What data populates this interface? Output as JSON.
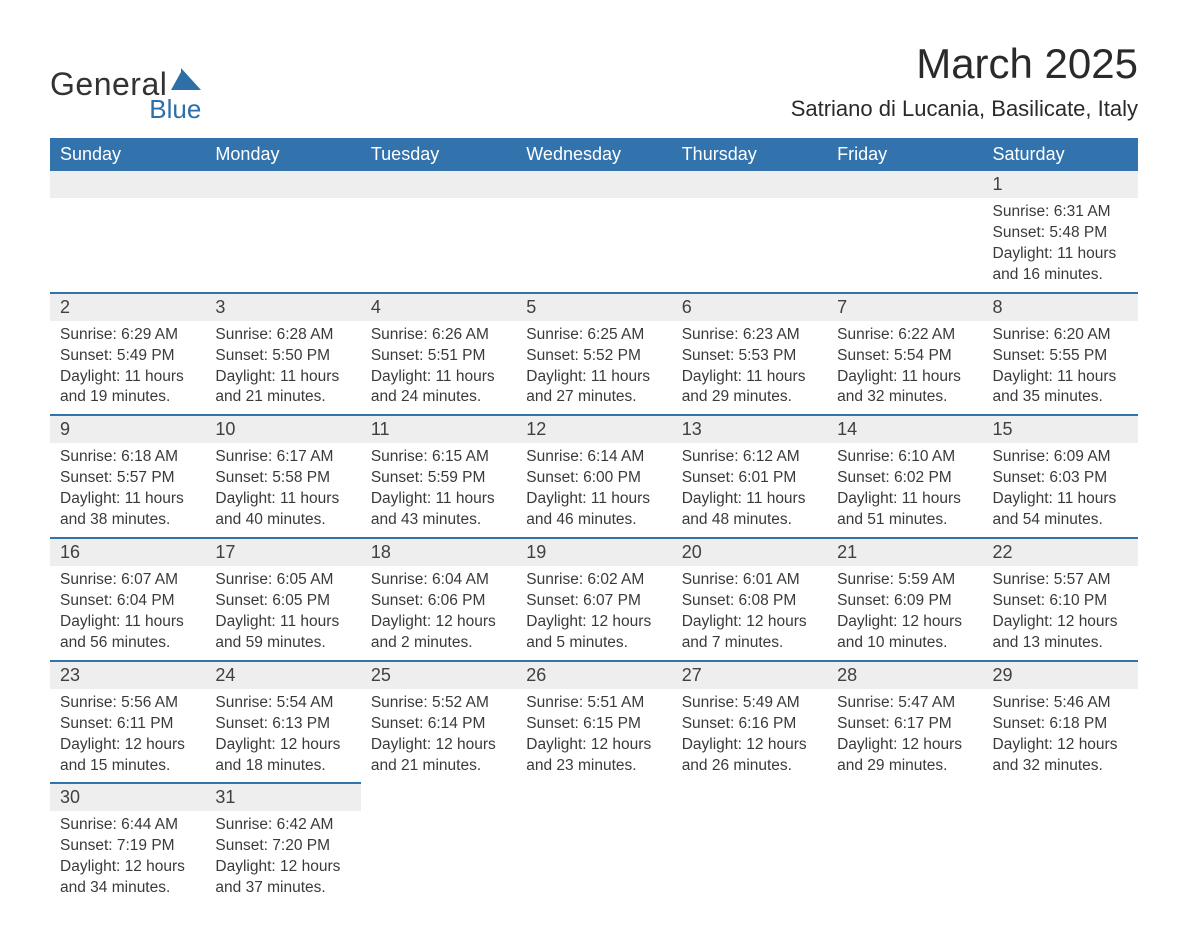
{
  "logo": {
    "general": "General",
    "blue": "Blue"
  },
  "title": "March 2025",
  "location": "Satriano di Lucania, Basilicate, Italy",
  "colors": {
    "header_bg": "#3273ad",
    "header_text": "#ffffff",
    "daynum_bg": "#eeeeee",
    "body_text": "#3a3a3a",
    "row_divider": "#3273ad",
    "logo_accent": "#2e6fa7",
    "page_bg": "#ffffff"
  },
  "typography": {
    "title_fontsize": 42,
    "location_fontsize": 22,
    "header_fontsize": 18,
    "daynum_fontsize": 18,
    "body_fontsize": 15.5
  },
  "dayLabels": [
    "Sunday",
    "Monday",
    "Tuesday",
    "Wednesday",
    "Thursday",
    "Friday",
    "Saturday"
  ],
  "weeks": [
    [
      null,
      null,
      null,
      null,
      null,
      null,
      {
        "n": "1",
        "sr": "Sunrise: 6:31 AM",
        "ss": "Sunset: 5:48 PM",
        "d1": "Daylight: 11 hours",
        "d2": "and 16 minutes."
      }
    ],
    [
      {
        "n": "2",
        "sr": "Sunrise: 6:29 AM",
        "ss": "Sunset: 5:49 PM",
        "d1": "Daylight: 11 hours",
        "d2": "and 19 minutes."
      },
      {
        "n": "3",
        "sr": "Sunrise: 6:28 AM",
        "ss": "Sunset: 5:50 PM",
        "d1": "Daylight: 11 hours",
        "d2": "and 21 minutes."
      },
      {
        "n": "4",
        "sr": "Sunrise: 6:26 AM",
        "ss": "Sunset: 5:51 PM",
        "d1": "Daylight: 11 hours",
        "d2": "and 24 minutes."
      },
      {
        "n": "5",
        "sr": "Sunrise: 6:25 AM",
        "ss": "Sunset: 5:52 PM",
        "d1": "Daylight: 11 hours",
        "d2": "and 27 minutes."
      },
      {
        "n": "6",
        "sr": "Sunrise: 6:23 AM",
        "ss": "Sunset: 5:53 PM",
        "d1": "Daylight: 11 hours",
        "d2": "and 29 minutes."
      },
      {
        "n": "7",
        "sr": "Sunrise: 6:22 AM",
        "ss": "Sunset: 5:54 PM",
        "d1": "Daylight: 11 hours",
        "d2": "and 32 minutes."
      },
      {
        "n": "8",
        "sr": "Sunrise: 6:20 AM",
        "ss": "Sunset: 5:55 PM",
        "d1": "Daylight: 11 hours",
        "d2": "and 35 minutes."
      }
    ],
    [
      {
        "n": "9",
        "sr": "Sunrise: 6:18 AM",
        "ss": "Sunset: 5:57 PM",
        "d1": "Daylight: 11 hours",
        "d2": "and 38 minutes."
      },
      {
        "n": "10",
        "sr": "Sunrise: 6:17 AM",
        "ss": "Sunset: 5:58 PM",
        "d1": "Daylight: 11 hours",
        "d2": "and 40 minutes."
      },
      {
        "n": "11",
        "sr": "Sunrise: 6:15 AM",
        "ss": "Sunset: 5:59 PM",
        "d1": "Daylight: 11 hours",
        "d2": "and 43 minutes."
      },
      {
        "n": "12",
        "sr": "Sunrise: 6:14 AM",
        "ss": "Sunset: 6:00 PM",
        "d1": "Daylight: 11 hours",
        "d2": "and 46 minutes."
      },
      {
        "n": "13",
        "sr": "Sunrise: 6:12 AM",
        "ss": "Sunset: 6:01 PM",
        "d1": "Daylight: 11 hours",
        "d2": "and 48 minutes."
      },
      {
        "n": "14",
        "sr": "Sunrise: 6:10 AM",
        "ss": "Sunset: 6:02 PM",
        "d1": "Daylight: 11 hours",
        "d2": "and 51 minutes."
      },
      {
        "n": "15",
        "sr": "Sunrise: 6:09 AM",
        "ss": "Sunset: 6:03 PM",
        "d1": "Daylight: 11 hours",
        "d2": "and 54 minutes."
      }
    ],
    [
      {
        "n": "16",
        "sr": "Sunrise: 6:07 AM",
        "ss": "Sunset: 6:04 PM",
        "d1": "Daylight: 11 hours",
        "d2": "and 56 minutes."
      },
      {
        "n": "17",
        "sr": "Sunrise: 6:05 AM",
        "ss": "Sunset: 6:05 PM",
        "d1": "Daylight: 11 hours",
        "d2": "and 59 minutes."
      },
      {
        "n": "18",
        "sr": "Sunrise: 6:04 AM",
        "ss": "Sunset: 6:06 PM",
        "d1": "Daylight: 12 hours",
        "d2": "and 2 minutes."
      },
      {
        "n": "19",
        "sr": "Sunrise: 6:02 AM",
        "ss": "Sunset: 6:07 PM",
        "d1": "Daylight: 12 hours",
        "d2": "and 5 minutes."
      },
      {
        "n": "20",
        "sr": "Sunrise: 6:01 AM",
        "ss": "Sunset: 6:08 PM",
        "d1": "Daylight: 12 hours",
        "d2": "and 7 minutes."
      },
      {
        "n": "21",
        "sr": "Sunrise: 5:59 AM",
        "ss": "Sunset: 6:09 PM",
        "d1": "Daylight: 12 hours",
        "d2": "and 10 minutes."
      },
      {
        "n": "22",
        "sr": "Sunrise: 5:57 AM",
        "ss": "Sunset: 6:10 PM",
        "d1": "Daylight: 12 hours",
        "d2": "and 13 minutes."
      }
    ],
    [
      {
        "n": "23",
        "sr": "Sunrise: 5:56 AM",
        "ss": "Sunset: 6:11 PM",
        "d1": "Daylight: 12 hours",
        "d2": "and 15 minutes."
      },
      {
        "n": "24",
        "sr": "Sunrise: 5:54 AM",
        "ss": "Sunset: 6:13 PM",
        "d1": "Daylight: 12 hours",
        "d2": "and 18 minutes."
      },
      {
        "n": "25",
        "sr": "Sunrise: 5:52 AM",
        "ss": "Sunset: 6:14 PM",
        "d1": "Daylight: 12 hours",
        "d2": "and 21 minutes."
      },
      {
        "n": "26",
        "sr": "Sunrise: 5:51 AM",
        "ss": "Sunset: 6:15 PM",
        "d1": "Daylight: 12 hours",
        "d2": "and 23 minutes."
      },
      {
        "n": "27",
        "sr": "Sunrise: 5:49 AM",
        "ss": "Sunset: 6:16 PM",
        "d1": "Daylight: 12 hours",
        "d2": "and 26 minutes."
      },
      {
        "n": "28",
        "sr": "Sunrise: 5:47 AM",
        "ss": "Sunset: 6:17 PM",
        "d1": "Daylight: 12 hours",
        "d2": "and 29 minutes."
      },
      {
        "n": "29",
        "sr": "Sunrise: 5:46 AM",
        "ss": "Sunset: 6:18 PM",
        "d1": "Daylight: 12 hours",
        "d2": "and 32 minutes."
      }
    ],
    [
      {
        "n": "30",
        "sr": "Sunrise: 6:44 AM",
        "ss": "Sunset: 7:19 PM",
        "d1": "Daylight: 12 hours",
        "d2": "and 34 minutes."
      },
      {
        "n": "31",
        "sr": "Sunrise: 6:42 AM",
        "ss": "Sunset: 7:20 PM",
        "d1": "Daylight: 12 hours",
        "d2": "and 37 minutes."
      },
      null,
      null,
      null,
      null,
      null
    ]
  ]
}
